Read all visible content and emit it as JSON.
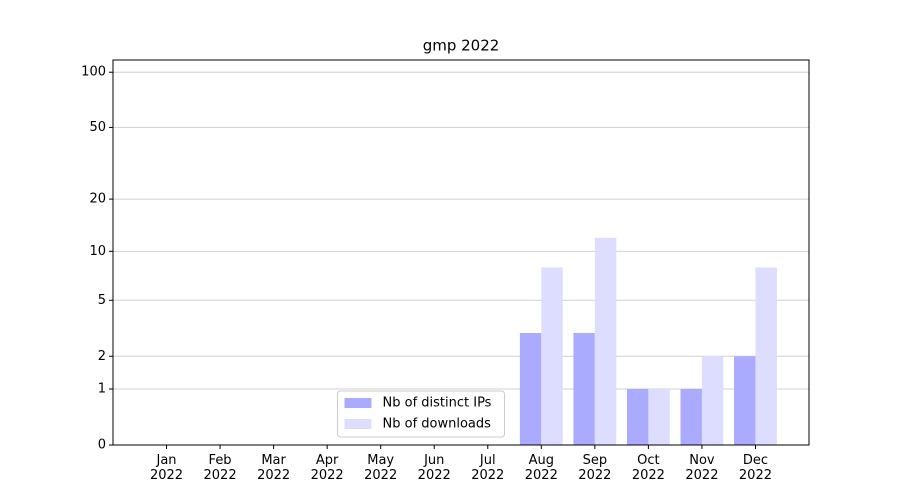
{
  "chart_data": {
    "type": "bar",
    "title": "gmp 2022",
    "categories": [
      "Jan\n2022",
      "Feb\n2022",
      "Mar\n2022",
      "Apr\n2022",
      "May\n2022",
      "Jun\n2022",
      "Jul\n2022",
      "Aug\n2022",
      "Sep\n2022",
      "Oct\n2022",
      "Nov\n2022",
      "Dec\n2022"
    ],
    "series": [
      {
        "name": "Nb of distinct IPs",
        "color": "#aaaaff",
        "values": [
          0,
          0,
          0,
          0,
          0,
          0,
          0,
          3,
          3,
          1,
          1,
          2
        ]
      },
      {
        "name": "Nb of downloads",
        "color": "#ddddff",
        "values": [
          0,
          0,
          0,
          0,
          0,
          0,
          0,
          8,
          12,
          1,
          2,
          8
        ]
      }
    ],
    "yscale": "log1p",
    "ylim": [
      0,
      116.5
    ],
    "yticks": [
      0,
      1,
      2,
      5,
      10,
      20,
      50,
      100
    ],
    "grid": true,
    "legend": "lower center"
  }
}
